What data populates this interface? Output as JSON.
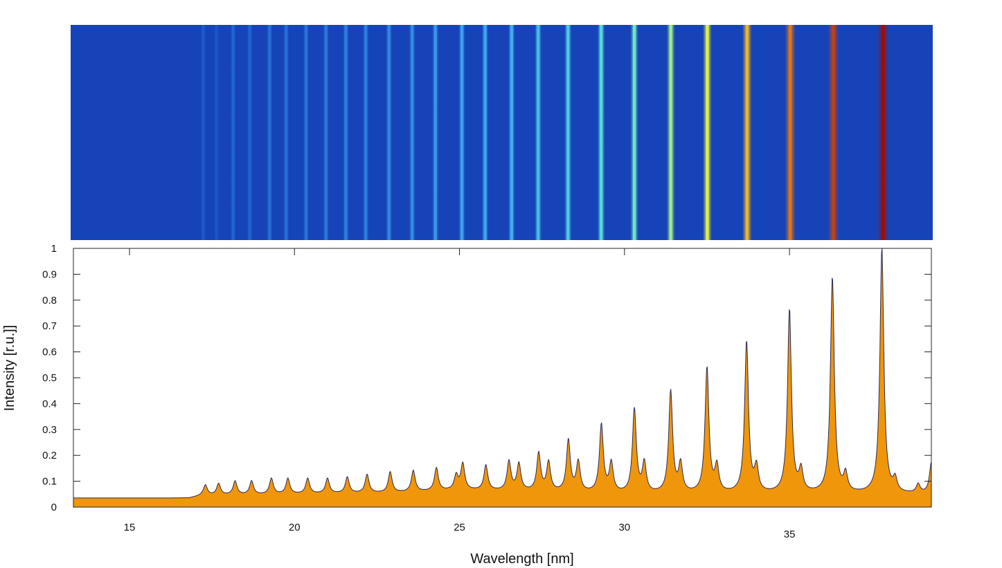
{
  "chart_data": [
    {
      "type": "heatmap",
      "title": "",
      "xlim": [
        13.3,
        39.3
      ],
      "colormap": [
        "#0a1f8f",
        "#1a52c8",
        "#3fa8f0",
        "#5ee7d0",
        "#e8ee3a",
        "#f08a1c",
        "#9b0f0a"
      ],
      "background_level": 0.12,
      "bands": [
        {
          "x": 17.3,
          "level": 0.18
        },
        {
          "x": 17.7,
          "level": 0.17
        },
        {
          "x": 18.2,
          "level": 0.2
        },
        {
          "x": 18.7,
          "level": 0.2
        },
        {
          "x": 19.3,
          "level": 0.22
        },
        {
          "x": 19.8,
          "level": 0.22
        },
        {
          "x": 20.4,
          "level": 0.23
        },
        {
          "x": 21.0,
          "level": 0.24
        },
        {
          "x": 21.6,
          "level": 0.25
        },
        {
          "x": 22.2,
          "level": 0.25
        },
        {
          "x": 22.9,
          "level": 0.27
        },
        {
          "x": 23.6,
          "level": 0.28
        },
        {
          "x": 24.3,
          "level": 0.3
        },
        {
          "x": 25.1,
          "level": 0.32
        },
        {
          "x": 25.8,
          "level": 0.33
        },
        {
          "x": 26.6,
          "level": 0.35
        },
        {
          "x": 27.4,
          "level": 0.38
        },
        {
          "x": 28.3,
          "level": 0.42
        },
        {
          "x": 29.3,
          "level": 0.46
        },
        {
          "x": 30.3,
          "level": 0.52
        },
        {
          "x": 31.4,
          "level": 0.58
        },
        {
          "x": 32.5,
          "level": 0.66
        },
        {
          "x": 33.7,
          "level": 0.76
        },
        {
          "x": 35.0,
          "level": 0.86
        },
        {
          "x": 36.3,
          "level": 0.93
        },
        {
          "x": 37.8,
          "level": 1.0
        }
      ]
    },
    {
      "type": "area",
      "title": "",
      "xlabel": "Wavelength [nm]",
      "ylabel": "Intensity [r.u.]]",
      "xlim": [
        13.3,
        39.3
      ],
      "ylim": [
        0,
        1
      ],
      "xticks": [
        15,
        20,
        25,
        30,
        35
      ],
      "yticks": [
        0,
        0.1,
        0.2,
        0.3,
        0.4,
        0.5,
        0.6,
        0.7,
        0.8,
        0.9,
        1
      ],
      "ytick_labels": [
        "0",
        "0.1",
        "0.2",
        "0.3",
        "0.4",
        "0.5",
        "0.6",
        "0.7",
        "0.8",
        "0.9",
        "1"
      ],
      "fill_color": "#f0960a",
      "line_color": "#2b2a5a",
      "baseline": [
        {
          "x": 13.3,
          "y": 0.035
        },
        {
          "x": 16.8,
          "y": 0.035
        },
        {
          "x": 17.2,
          "y": 0.045
        },
        {
          "x": 20.0,
          "y": 0.05
        },
        {
          "x": 23.0,
          "y": 0.055
        },
        {
          "x": 25.0,
          "y": 0.065
        },
        {
          "x": 27.0,
          "y": 0.06
        },
        {
          "x": 30.0,
          "y": 0.05
        },
        {
          "x": 39.3,
          "y": 0.05
        }
      ],
      "peaks": [
        {
          "x": 17.3,
          "y": 0.085
        },
        {
          "x": 17.7,
          "y": 0.09
        },
        {
          "x": 18.2,
          "y": 0.1
        },
        {
          "x": 18.7,
          "y": 0.1
        },
        {
          "x": 19.3,
          "y": 0.11
        },
        {
          "x": 19.8,
          "y": 0.11
        },
        {
          "x": 20.4,
          "y": 0.11
        },
        {
          "x": 21.0,
          "y": 0.11
        },
        {
          "x": 21.6,
          "y": 0.115
        },
        {
          "x": 22.2,
          "y": 0.125
        },
        {
          "x": 22.9,
          "y": 0.135
        },
        {
          "x": 23.6,
          "y": 0.14
        },
        {
          "x": 24.3,
          "y": 0.15
        },
        {
          "x": 24.9,
          "y": 0.12
        },
        {
          "x": 25.1,
          "y": 0.165
        },
        {
          "x": 25.8,
          "y": 0.16
        },
        {
          "x": 26.5,
          "y": 0.175
        },
        {
          "x": 26.8,
          "y": 0.165
        },
        {
          "x": 27.4,
          "y": 0.205
        },
        {
          "x": 27.7,
          "y": 0.17
        },
        {
          "x": 28.3,
          "y": 0.255
        },
        {
          "x": 28.6,
          "y": 0.17
        },
        {
          "x": 29.3,
          "y": 0.315
        },
        {
          "x": 29.6,
          "y": 0.165
        },
        {
          "x": 30.3,
          "y": 0.375
        },
        {
          "x": 30.6,
          "y": 0.165
        },
        {
          "x": 31.4,
          "y": 0.445
        },
        {
          "x": 31.7,
          "y": 0.16
        },
        {
          "x": 32.5,
          "y": 0.535
        },
        {
          "x": 32.8,
          "y": 0.15
        },
        {
          "x": 33.7,
          "y": 0.635
        },
        {
          "x": 34.0,
          "y": 0.145
        },
        {
          "x": 35.0,
          "y": 0.76
        },
        {
          "x": 35.35,
          "y": 0.135
        },
        {
          "x": 36.3,
          "y": 0.885
        },
        {
          "x": 36.7,
          "y": 0.12
        },
        {
          "x": 37.8,
          "y": 1.0
        },
        {
          "x": 38.2,
          "y": 0.1
        },
        {
          "x": 38.9,
          "y": 0.085
        },
        {
          "x": 39.3,
          "y": 0.17
        }
      ]
    }
  ]
}
